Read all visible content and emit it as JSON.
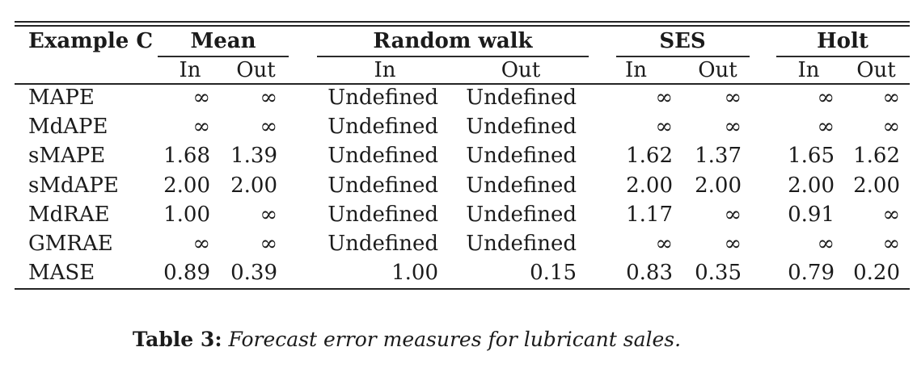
{
  "table": {
    "corner_header": "Example C",
    "groups": [
      {
        "label": "Mean"
      },
      {
        "label": "Random walk"
      },
      {
        "label": "SES"
      },
      {
        "label": "Holt"
      }
    ],
    "subheaders": [
      "In",
      "Out",
      "In",
      "Out",
      "In",
      "Out",
      "In",
      "Out"
    ],
    "rows": [
      {
        "label": "MAPE",
        "values": [
          "∞",
          "∞",
          "Undefined",
          "Undefined",
          "∞",
          "∞",
          "∞",
          "∞"
        ]
      },
      {
        "label": "MdAPE",
        "values": [
          "∞",
          "∞",
          "Undefined",
          "Undefined",
          "∞",
          "∞",
          "∞",
          "∞"
        ]
      },
      {
        "label": "sMAPE",
        "values": [
          "1.68",
          "1.39",
          "Undefined",
          "Undefined",
          "1.62",
          "1.37",
          "1.65",
          "1.62"
        ]
      },
      {
        "label": "sMdAPE",
        "values": [
          "2.00",
          "2.00",
          "Undefined",
          "Undefined",
          "2.00",
          "2.00",
          "2.00",
          "2.00"
        ]
      },
      {
        "label": "MdRAE",
        "values": [
          "1.00",
          "∞",
          "Undefined",
          "Undefined",
          "1.17",
          "∞",
          "0.91",
          "∞"
        ]
      },
      {
        "label": "GMRAE",
        "values": [
          "∞",
          "∞",
          "Undefined",
          "Undefined",
          "∞",
          "∞",
          "∞",
          "∞"
        ]
      },
      {
        "label": "MASE",
        "values": [
          "0.89",
          "0.39",
          "1.00",
          "0.15",
          "0.83",
          "0.35",
          "0.79",
          "0.20"
        ]
      }
    ]
  },
  "caption": {
    "label": "Table 3:",
    "text": "Forecast error measures for lubricant sales."
  },
  "colors": {
    "text": "#1b1b1b",
    "rule": "#242424",
    "background": "#ffffff"
  },
  "chart_data": {
    "type": "table",
    "title": "Table 3: Forecast error measures for lubricant sales.",
    "columns": [
      "Example C",
      "Mean In",
      "Mean Out",
      "Random walk In",
      "Random walk Out",
      "SES In",
      "SES Out",
      "Holt In",
      "Holt Out"
    ],
    "rows": [
      [
        "MAPE",
        "∞",
        "∞",
        "Undefined",
        "Undefined",
        "∞",
        "∞",
        "∞",
        "∞"
      ],
      [
        "MdAPE",
        "∞",
        "∞",
        "Undefined",
        "Undefined",
        "∞",
        "∞",
        "∞",
        "∞"
      ],
      [
        "sMAPE",
        1.68,
        1.39,
        "Undefined",
        "Undefined",
        1.62,
        1.37,
        1.65,
        1.62
      ],
      [
        "sMdAPE",
        2.0,
        2.0,
        "Undefined",
        "Undefined",
        2.0,
        2.0,
        2.0,
        2.0
      ],
      [
        "MdRAE",
        1.0,
        "∞",
        "Undefined",
        "Undefined",
        1.17,
        "∞",
        0.91,
        "∞"
      ],
      [
        "GMRAE",
        "∞",
        "∞",
        "Undefined",
        "Undefined",
        "∞",
        "∞",
        "∞",
        "∞"
      ],
      [
        "MASE",
        0.89,
        0.39,
        1.0,
        0.15,
        0.83,
        0.35,
        0.79,
        0.2
      ]
    ]
  }
}
